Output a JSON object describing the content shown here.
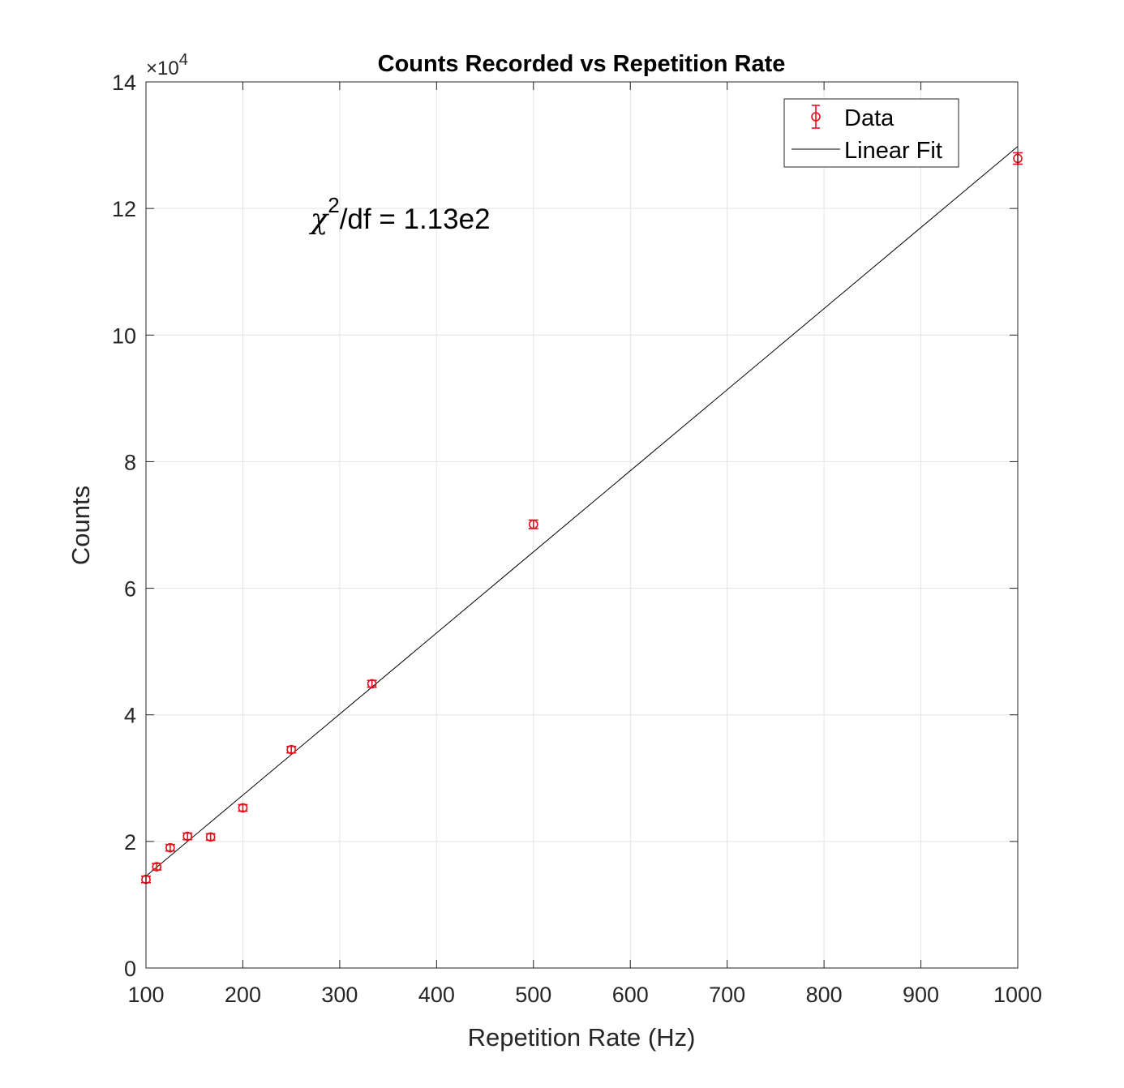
{
  "chart_data": {
    "type": "scatter",
    "title": "Counts Recorded vs Repetition Rate",
    "xlabel": "Repetition Rate (Hz)",
    "ylabel": "Counts",
    "xlim": [
      100,
      1000
    ],
    "ylim": [
      0,
      140000
    ],
    "x_ticks": [
      "100",
      "200",
      "300",
      "400",
      "500",
      "600",
      "700",
      "800",
      "900",
      "1000"
    ],
    "y_ticks": [
      "0",
      "2",
      "4",
      "6",
      "8",
      "10",
      "12",
      "14"
    ],
    "y_exponent_label": "×10",
    "y_exponent_power": "4",
    "grid": true,
    "legend_position": "top-right",
    "annotation": {
      "symbol": "χ",
      "superscript": "2",
      "text": "/df = 1.13e2"
    },
    "series": [
      {
        "name": "Data",
        "kind": "errorbar",
        "color": "#e8101c",
        "x": [
          100,
          111.1,
          125,
          142.9,
          166.7,
          200,
          250,
          333.3,
          500,
          1000
        ],
        "y": [
          14000,
          16000,
          19000,
          20800,
          20700,
          25300,
          34500,
          44900,
          70100,
          127900
        ],
        "err": [
          300,
          320,
          350,
          360,
          360,
          400,
          470,
          540,
          670,
          900
        ]
      },
      {
        "name": "Linear Fit",
        "kind": "line",
        "color": "#000000",
        "x": [
          100,
          1000
        ],
        "y": [
          14500,
          129800
        ]
      }
    ]
  }
}
